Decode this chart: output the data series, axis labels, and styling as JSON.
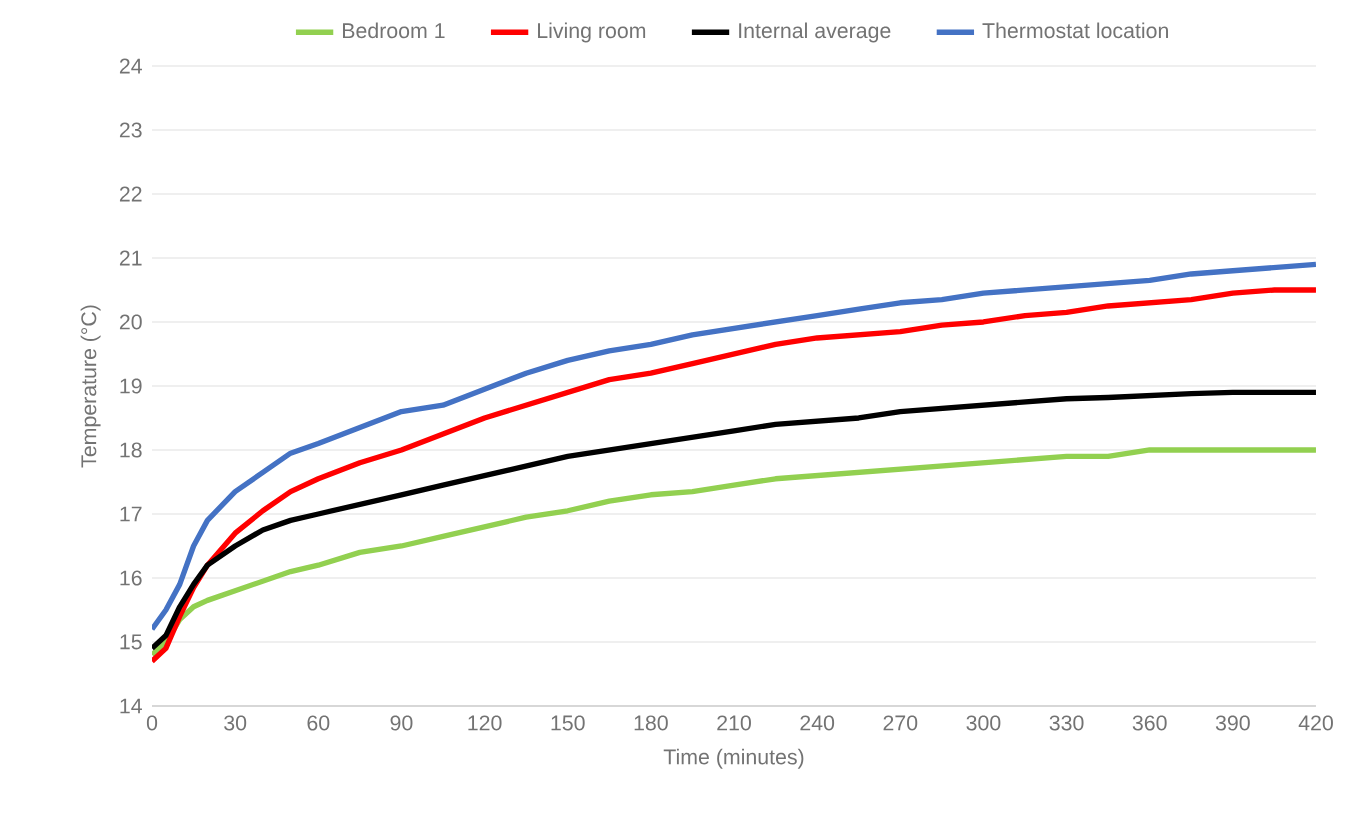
{
  "chart_data": {
    "type": "line",
    "xlabel": "Time (minutes)",
    "ylabel": "Temperature (°C)",
    "x": [
      0,
      5,
      10,
      15,
      20,
      30,
      40,
      50,
      60,
      75,
      90,
      105,
      120,
      135,
      150,
      165,
      180,
      195,
      210,
      225,
      240,
      255,
      270,
      285,
      300,
      315,
      330,
      345,
      360,
      375,
      390,
      405,
      420
    ],
    "series": [
      {
        "name": "Bedroom 1",
        "color": "#92d050",
        "values": [
          14.8,
          15.0,
          15.35,
          15.55,
          15.65,
          15.8,
          15.95,
          16.1,
          16.2,
          16.4,
          16.5,
          16.65,
          16.8,
          16.95,
          17.05,
          17.2,
          17.3,
          17.35,
          17.45,
          17.55,
          17.6,
          17.65,
          17.7,
          17.75,
          17.8,
          17.85,
          17.9,
          17.9,
          18.0,
          18.0,
          18.0,
          18.0,
          18.0
        ]
      },
      {
        "name": "Living room",
        "color": "#ff0000",
        "values": [
          14.7,
          14.9,
          15.4,
          15.85,
          16.2,
          16.7,
          17.05,
          17.35,
          17.55,
          17.8,
          18.0,
          18.25,
          18.5,
          18.7,
          18.9,
          19.1,
          19.2,
          19.35,
          19.5,
          19.65,
          19.75,
          19.8,
          19.85,
          19.95,
          20.0,
          20.1,
          20.15,
          20.25,
          20.3,
          20.35,
          20.45,
          20.5,
          20.5
        ]
      },
      {
        "name": "Internal average",
        "color": "#000000",
        "values": [
          14.9,
          15.1,
          15.55,
          15.9,
          16.2,
          16.5,
          16.75,
          16.9,
          17.0,
          17.15,
          17.3,
          17.45,
          17.6,
          17.75,
          17.9,
          18.0,
          18.1,
          18.2,
          18.3,
          18.4,
          18.45,
          18.5,
          18.6,
          18.65,
          18.7,
          18.75,
          18.8,
          18.82,
          18.85,
          18.88,
          18.9,
          18.9,
          18.9
        ]
      },
      {
        "name": "Thermostat location",
        "color": "#4472c4",
        "values": [
          15.2,
          15.5,
          15.9,
          16.5,
          16.9,
          17.35,
          17.65,
          17.95,
          18.1,
          18.35,
          18.6,
          18.7,
          18.95,
          19.2,
          19.4,
          19.55,
          19.65,
          19.8,
          19.9,
          20.0,
          20.1,
          20.2,
          20.3,
          20.35,
          20.45,
          20.5,
          20.55,
          20.6,
          20.65,
          20.75,
          20.8,
          20.85,
          20.9
        ]
      }
    ],
    "xlim": [
      0,
      420
    ],
    "xticks": [
      0,
      30,
      60,
      90,
      120,
      150,
      180,
      210,
      240,
      270,
      300,
      330,
      360,
      390,
      420
    ],
    "ylim": [
      14,
      24
    ],
    "yticks": [
      14,
      15,
      16,
      17,
      18,
      19,
      20,
      21,
      22,
      23,
      24
    ],
    "grid": "y",
    "legend": "top",
    "marker": "none",
    "line_style": "solid"
  }
}
